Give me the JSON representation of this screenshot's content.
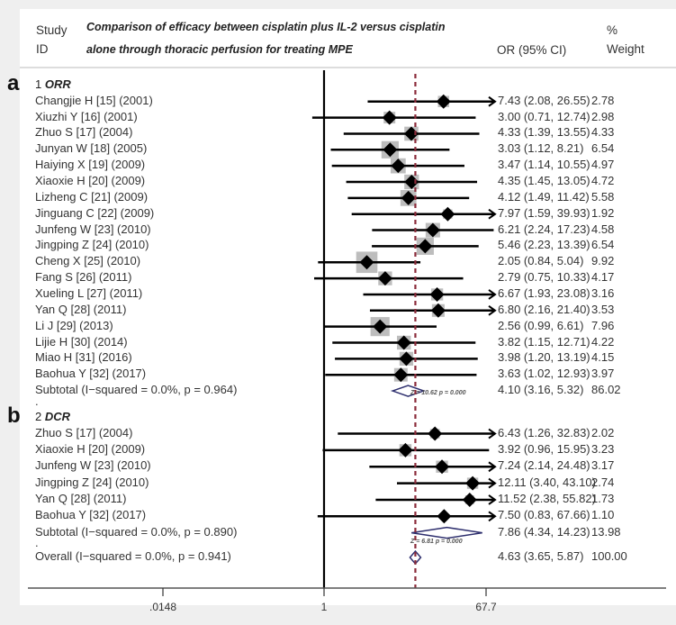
{
  "chart_data": {
    "type": "forest",
    "title": "Comparison of efficacy between cisplatin plus IL-2 versus cisplatin alone through thoracic perfusion for treating MPE",
    "columns": {
      "study": "Study",
      "id": "ID",
      "or": "OR (95% CI)",
      "weight_top": "%",
      "weight_bottom": "Weight"
    },
    "title_lines": [
      "Comparison of efficacy between cisplatin plus IL-2 versus cisplatin",
      "alone through thoracic perfusion for treating MPE"
    ],
    "x_scale": "log",
    "x_ticks": [
      {
        "value": 0.0148,
        "label": ".0148"
      },
      {
        "value": 1,
        "label": "1"
      },
      {
        "value": 67.7,
        "label": "67.7"
      }
    ],
    "null_line": 1,
    "overall_line": 4.63,
    "groups": [
      {
        "panel": "a",
        "label_num": "1",
        "label": "ORR",
        "studies": [
          {
            "name": "Changjie H [15] (2001)",
            "or": 7.43,
            "lo": 2.08,
            "hi": 26.55,
            "or_text": "7.43 (2.08, 26.55)",
            "weight": "2.78"
          },
          {
            "name": "Xiuzhi Y [16] (2001)",
            "or": 3.0,
            "lo": 0.71,
            "hi": 12.74,
            "or_text": "3.00 (0.71, 12.74)",
            "weight": "2.98"
          },
          {
            "name": "Zhuo S [17] (2004)",
            "or": 4.33,
            "lo": 1.39,
            "hi": 13.55,
            "or_text": "4.33 (1.39, 13.55)",
            "weight": "4.33"
          },
          {
            "name": "Junyan W [18] (2005)",
            "or": 3.03,
            "lo": 1.12,
            "hi": 8.21,
            "or_text": "3.03 (1.12, 8.21)",
            "weight": "6.54"
          },
          {
            "name": "Haiying X [19] (2009)",
            "or": 3.47,
            "lo": 1.14,
            "hi": 10.55,
            "or_text": "3.47 (1.14, 10.55)",
            "weight": "4.97"
          },
          {
            "name": "Xiaoxie H [20] (2009)",
            "or": 4.35,
            "lo": 1.45,
            "hi": 13.05,
            "or_text": "4.35 (1.45, 13.05)",
            "weight": "4.72"
          },
          {
            "name": "Lizheng C [21] (2009)",
            "or": 4.12,
            "lo": 1.49,
            "hi": 11.42,
            "or_text": "4.12 (1.49, 11.42)",
            "weight": "5.58"
          },
          {
            "name": "Jinguang C [22] (2009)",
            "or": 7.97,
            "lo": 1.59,
            "hi": 39.93,
            "or_text": "7.97 (1.59, 39.93)",
            "weight": "1.92"
          },
          {
            "name": "Junfeng W [23] (2010)",
            "or": 6.21,
            "lo": 2.24,
            "hi": 17.23,
            "or_text": "6.21 (2.24, 17.23)",
            "weight": "4.58"
          },
          {
            "name": "Jingping Z [24] (2010)",
            "or": 5.46,
            "lo": 2.23,
            "hi": 13.39,
            "or_text": "5.46 (2.23, 13.39)",
            "weight": "6.54"
          },
          {
            "name": "Cheng X [25] (2010)",
            "or": 2.05,
            "lo": 0.84,
            "hi": 5.04,
            "or_text": "2.05 (0.84, 5.04)",
            "weight": "9.92"
          },
          {
            "name": "Fang S [26] (2011)",
            "or": 2.79,
            "lo": 0.75,
            "hi": 10.33,
            "or_text": "2.79 (0.75, 10.33)",
            "weight": "4.17"
          },
          {
            "name": "Xueling L [27] (2011)",
            "or": 6.67,
            "lo": 1.93,
            "hi": 23.08,
            "or_text": "6.67 (1.93, 23.08)",
            "weight": "3.16"
          },
          {
            "name": "Yan Q [28] (2011)",
            "or": 6.8,
            "lo": 2.16,
            "hi": 21.4,
            "or_text": "6.80 (2.16, 21.40)",
            "weight": "3.53"
          },
          {
            "name": "Li J [29] (2013)",
            "or": 2.56,
            "lo": 0.99,
            "hi": 6.61,
            "or_text": "2.56 (0.99, 6.61)",
            "weight": "7.96"
          },
          {
            "name": "Lijie H [30] (2014)",
            "or": 3.82,
            "lo": 1.15,
            "hi": 12.71,
            "or_text": "3.82 (1.15, 12.71)",
            "weight": "4.22"
          },
          {
            "name": "Miao H [31] (2016)",
            "or": 3.98,
            "lo": 1.2,
            "hi": 13.19,
            "or_text": "3.98 (1.20, 13.19)",
            "weight": "4.15"
          },
          {
            "name": "Baohua Y [32] (2017)",
            "or": 3.63,
            "lo": 1.02,
            "hi": 12.93,
            "or_text": "3.63 (1.02, 12.93)",
            "weight": "3.97"
          }
        ],
        "subtotal": {
          "label": "Subtotal  (I−squared = 0.0%, p = 0.964)",
          "or": 4.1,
          "lo": 3.16,
          "hi": 5.32,
          "or_text": "4.10 (3.16, 5.32)",
          "weight": "86.02",
          "stat": "Z = 10.62   p = 0.000"
        }
      },
      {
        "panel": "b",
        "label_num": "2",
        "label": "DCR",
        "studies": [
          {
            "name": "Zhuo S [17] (2004)",
            "or": 6.43,
            "lo": 1.26,
            "hi": 32.83,
            "or_text": "6.43 (1.26, 32.83)",
            "weight": "2.02"
          },
          {
            "name": "Xiaoxie H [20] (2009)",
            "or": 3.92,
            "lo": 0.96,
            "hi": 15.95,
            "or_text": "3.92 (0.96, 15.95)",
            "weight": "3.23"
          },
          {
            "name": "Junfeng W [23] (2010)",
            "or": 7.24,
            "lo": 2.14,
            "hi": 24.48,
            "or_text": "7.24 (2.14, 24.48)",
            "weight": "3.17"
          },
          {
            "name": "Jingping Z [24] (2010)",
            "or": 12.11,
            "lo": 3.4,
            "hi": 43.1,
            "or_text": "12.11 (3.40, 43.10)",
            "weight": "2.74"
          },
          {
            "name": "Yan Q [28] (2011)",
            "or": 11.52,
            "lo": 2.38,
            "hi": 55.82,
            "or_text": "11.52 (2.38, 55.82)",
            "weight": "1.73"
          },
          {
            "name": "Baohua Y [32] (2017)",
            "or": 7.5,
            "lo": 0.83,
            "hi": 67.66,
            "or_text": "7.50 (0.83, 67.66)",
            "weight": "1.10"
          }
        ],
        "subtotal": {
          "label": "Subtotal  (I−squared = 0.0%, p = 0.890)",
          "or": 7.86,
          "lo": 4.34,
          "hi": 14.23,
          "or_text": "7.86 (4.34, 14.23)",
          "weight": "13.98",
          "stat": "Z = 6.81   p = 0.000"
        }
      }
    ],
    "overall": {
      "label": "Overall  (I−squared = 0.0%, p = 0.941)",
      "or": 4.63,
      "lo": 3.65,
      "hi": 5.87,
      "or_text": "4.63 (3.65, 5.87)",
      "weight": "100.00"
    },
    "colors": {
      "marker": "#000000",
      "weight_box": "#bdbdbd",
      "diamond": "#2e2f6e",
      "overall_line": "#8a2b3a",
      "axis": "#000000"
    }
  }
}
